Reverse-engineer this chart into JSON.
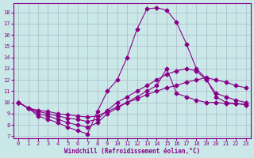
{
  "xlabel": "Windchill (Refroidissement éolien,°C)",
  "bg_color": "#cbe8e8",
  "grid_color": "#aab8cc",
  "line_color": "#880088",
  "ylim": [
    6.8,
    18.8
  ],
  "xlim": [
    -0.5,
    23.5
  ],
  "yticks": [
    7,
    8,
    9,
    10,
    11,
    12,
    13,
    14,
    15,
    16,
    17,
    18
  ],
  "xticks": [
    0,
    1,
    2,
    3,
    4,
    5,
    6,
    7,
    8,
    9,
    10,
    11,
    12,
    13,
    14,
    15,
    16,
    17,
    18,
    19,
    20,
    21,
    22,
    23
  ],
  "series": [
    [
      10.0,
      9.5,
      8.8,
      8.5,
      8.2,
      7.8,
      7.5,
      7.2,
      9.2,
      11.0,
      12.0,
      14.0,
      16.5,
      18.3,
      18.4,
      18.2,
      17.1,
      15.2,
      13.0,
      12.1,
      10.5,
      10.0,
      9.9,
      9.8
    ],
    [
      10.0,
      9.5,
      9.0,
      8.8,
      8.5,
      8.2,
      8.0,
      7.8,
      8.2,
      9.0,
      9.5,
      10.0,
      10.5,
      11.0,
      11.5,
      13.0,
      10.8,
      10.5,
      10.2,
      10.0,
      10.0,
      9.9,
      9.9,
      9.8
    ],
    [
      10.0,
      9.5,
      9.2,
      9.0,
      8.8,
      8.6,
      8.5,
      8.3,
      8.5,
      9.3,
      10.0,
      10.5,
      11.0,
      11.5,
      12.0,
      12.5,
      12.8,
      13.0,
      12.8,
      12.0,
      10.8,
      10.5,
      10.2,
      10.0
    ],
    [
      10.0,
      9.5,
      9.3,
      9.2,
      9.0,
      8.9,
      8.8,
      8.7,
      8.8,
      9.2,
      9.6,
      10.0,
      10.3,
      10.7,
      11.0,
      11.3,
      11.5,
      11.8,
      12.0,
      12.2,
      12.0,
      11.8,
      11.5,
      11.3
    ]
  ],
  "marker": "D",
  "markersize": 2.5,
  "linewidth": 0.8
}
